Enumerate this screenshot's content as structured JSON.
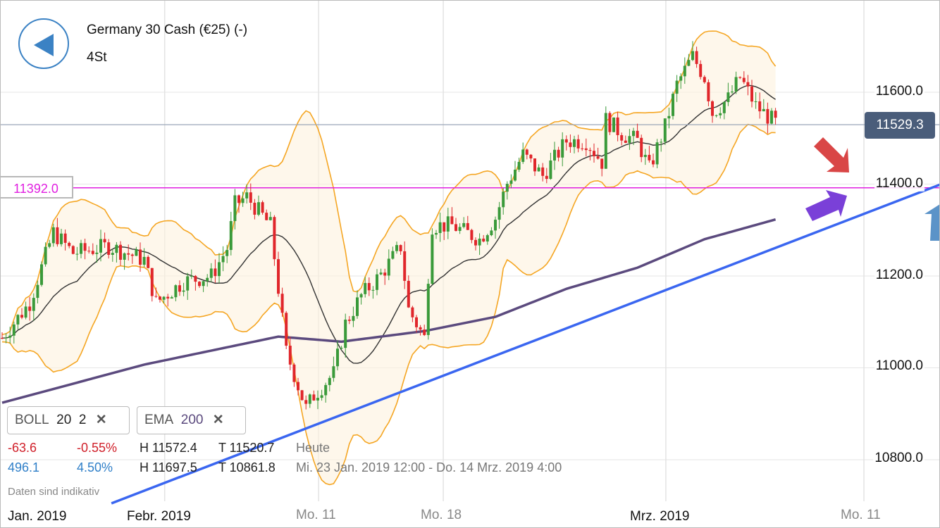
{
  "header": {
    "title": "Germany 30 Cash (€25) (-)",
    "period": "4St"
  },
  "price_badge": "11529.3",
  "horizontal_line_label": "11392.0",
  "indicators": [
    {
      "name": "BOLL",
      "p1": "20",
      "p2": "2",
      "close": "✕"
    },
    {
      "name": "EMA",
      "p1": "200",
      "close": "✕"
    }
  ],
  "stats": {
    "today": {
      "change": "-63.6",
      "pct": "-0.55%",
      "high": "H 11572.4",
      "low": "T 11520.7",
      "label": "Heute"
    },
    "range": {
      "change": "496.1",
      "pct": "4.50%",
      "high": "H 11697.5",
      "low": "T 10861.8",
      "label": "Mi. 23 Jan. 2019 12:00 - Do. 14 Mrz. 2019 4:00"
    }
  },
  "note": "Daten sind indikativ",
  "colors": {
    "up": "#3a9a3a",
    "down": "#e0262b",
    "boll": "#f5a623",
    "ema": "#5b4a7e",
    "trend": "#3a66f0",
    "hline": "#e020e0"
  },
  "chart_data": {
    "type": "candlestick",
    "y_ticks": [
      "11600.0",
      "11400.0",
      "11200.0",
      "11000.0",
      "10800.0"
    ],
    "y_tick_values": [
      11600,
      11400,
      11200,
      11000,
      10800
    ],
    "x_ticks": [
      {
        "label": "Jan. 2019",
        "major": true,
        "idx": -1
      },
      {
        "label": "Febr. 2019",
        "major": true,
        "idx": 41.2
      },
      {
        "label": "Mo. 11",
        "major": false,
        "idx": 80.2
      },
      {
        "label": "Mo. 18",
        "major": false,
        "idx": 111.8
      },
      {
        "label": "Mrz. 2019",
        "major": true,
        "idx": 168.2
      },
      {
        "label": "Mo. 11",
        "major": false,
        "idx": 218.4
      }
    ],
    "ylim": [
      10700,
      11750
    ],
    "candle_count": 197,
    "close_waypoints": [
      [
        0,
        11065
      ],
      [
        7,
        11142
      ],
      [
        13,
        11295
      ],
      [
        18,
        11250
      ],
      [
        27,
        11265
      ],
      [
        36,
        11235
      ],
      [
        39,
        11142
      ],
      [
        46,
        11188
      ],
      [
        53,
        11200
      ],
      [
        57,
        11260
      ],
      [
        59,
        11356
      ],
      [
        62,
        11372
      ],
      [
        68,
        11310
      ],
      [
        70,
        11172
      ],
      [
        72,
        11035
      ],
      [
        77,
        10912
      ],
      [
        79,
        10940
      ],
      [
        84,
        10988
      ],
      [
        87,
        11096
      ],
      [
        91,
        11157
      ],
      [
        96,
        11203
      ],
      [
        101,
        11264
      ],
      [
        103,
        11127
      ],
      [
        107,
        11065
      ],
      [
        108,
        11203
      ],
      [
        109,
        11310
      ],
      [
        114,
        11310
      ],
      [
        121,
        11280
      ],
      [
        125,
        11326
      ],
      [
        128,
        11402
      ],
      [
        132,
        11464
      ],
      [
        137,
        11418
      ],
      [
        143,
        11494
      ],
      [
        148,
        11494
      ],
      [
        152,
        11448
      ],
      [
        153,
        11540
      ],
      [
        157,
        11510
      ],
      [
        161,
        11494
      ],
      [
        164,
        11433
      ],
      [
        168,
        11525
      ],
      [
        171,
        11617
      ],
      [
        175,
        11678
      ],
      [
        178,
        11632
      ],
      [
        180,
        11555
      ],
      [
        184,
        11586
      ],
      [
        187,
        11632
      ],
      [
        191,
        11570
      ],
      [
        196,
        11533
      ]
    ],
    "ema200_waypoints": [
      [
        0,
        10924
      ],
      [
        36,
        11007
      ],
      [
        70,
        11068
      ],
      [
        86,
        11057
      ],
      [
        107,
        11080
      ],
      [
        125,
        11111
      ],
      [
        143,
        11172
      ],
      [
        161,
        11218
      ],
      [
        178,
        11280
      ],
      [
        196,
        11323
      ]
    ],
    "trendline": [
      [
        27.7,
        10705
      ],
      [
        238,
        11400
      ]
    ],
    "horizontal_line": 11392.0,
    "last_price": 11529.3
  }
}
